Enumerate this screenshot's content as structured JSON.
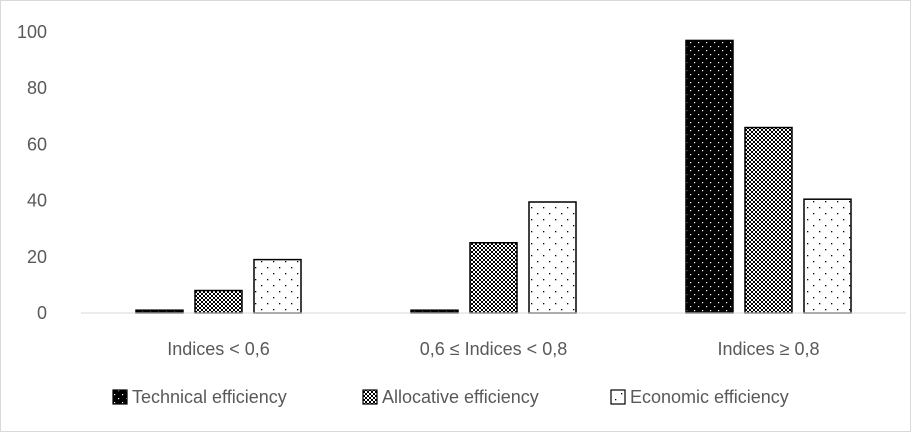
{
  "chart_data": {
    "type": "bar",
    "categories": [
      "Indices < 0,6",
      "0,6 ≤ Indices < 0,8",
      "Indices ≥ 0,8"
    ],
    "series": [
      {
        "name": "Technical efficiency",
        "values": [
          1,
          1,
          97
        ],
        "pattern": "solid-dots",
        "color": "#000000"
      },
      {
        "name": "Allocative efficiency",
        "values": [
          8,
          25,
          66
        ],
        "pattern": "checker",
        "color": "#000000"
      },
      {
        "name": "Economic efficiency",
        "values": [
          19,
          39.5,
          40.5
        ],
        "pattern": "sparse-dots",
        "color": "#ffffff"
      }
    ],
    "ylim": [
      0,
      100
    ],
    "yticks": [
      0,
      20,
      40,
      60,
      80,
      100
    ],
    "grid": false,
    "legend": "bottom"
  }
}
